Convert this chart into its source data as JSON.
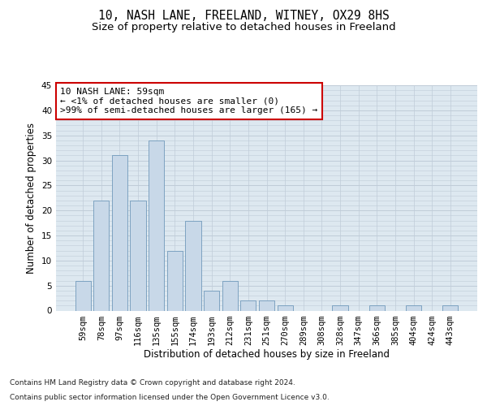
{
  "title_line1": "10, NASH LANE, FREELAND, WITNEY, OX29 8HS",
  "title_line2": "Size of property relative to detached houses in Freeland",
  "xlabel": "Distribution of detached houses by size in Freeland",
  "ylabel": "Number of detached properties",
  "categories": [
    "59sqm",
    "78sqm",
    "97sqm",
    "116sqm",
    "135sqm",
    "155sqm",
    "174sqm",
    "193sqm",
    "212sqm",
    "231sqm",
    "251sqm",
    "270sqm",
    "289sqm",
    "308sqm",
    "328sqm",
    "347sqm",
    "366sqm",
    "385sqm",
    "404sqm",
    "424sqm",
    "443sqm"
  ],
  "values": [
    6,
    22,
    31,
    22,
    34,
    12,
    18,
    4,
    6,
    2,
    2,
    1,
    0,
    0,
    1,
    0,
    1,
    0,
    1,
    0,
    1
  ],
  "bar_color": "#c8d8e8",
  "bar_edge_color": "#7099bb",
  "annotation_text": "10 NASH LANE: 59sqm\n← <1% of detached houses are smaller (0)\n>99% of semi-detached houses are larger (165) →",
  "annotation_box_color": "#ffffff",
  "annotation_box_edge": "#cc0000",
  "ylim": [
    0,
    45
  ],
  "yticks": [
    0,
    5,
    10,
    15,
    20,
    25,
    30,
    35,
    40,
    45
  ],
  "grid_color": "#c0ccd8",
  "background_color": "#dde8f0",
  "footer_line1": "Contains HM Land Registry data © Crown copyright and database right 2024.",
  "footer_line2": "Contains public sector information licensed under the Open Government Licence v3.0.",
  "title_fontsize": 10.5,
  "subtitle_fontsize": 9.5,
  "axis_label_fontsize": 8.5,
  "tick_fontsize": 7.5,
  "annotation_fontsize": 8,
  "footer_fontsize": 6.5
}
